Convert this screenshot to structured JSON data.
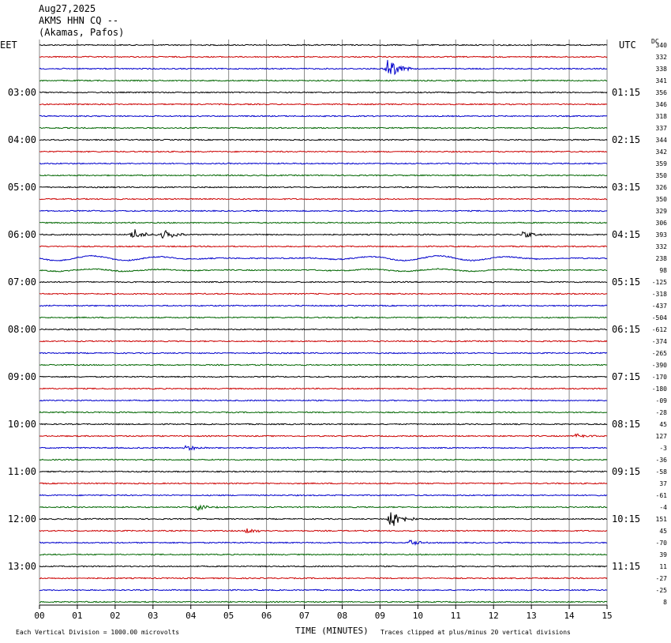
{
  "header": {
    "date": "Aug27,2025",
    "station": "AKMS HHN CQ --",
    "location": "(Akamas, Pafos)"
  },
  "left_timezone": "EET",
  "right_timezone": "UTC",
  "dc_label": "DC",
  "xlabel": "TIME (MINUTES)",
  "footer_left": "Each Vertical Division = 1000.00 microvolts",
  "footer_right": "Traces clipped at plus/minus 20 vertical divisions",
  "colors": {
    "trace_cycle": [
      "#000000",
      "#cc0000",
      "#0000cc",
      "#006600"
    ],
    "grid": "#888888"
  },
  "chart_data": {
    "type": "line",
    "subtype": "helicorder",
    "traces_count": 48,
    "minutes_per_trace": 15,
    "xlim": [
      0,
      15
    ],
    "x_ticks": [
      "00",
      "01",
      "02",
      "03",
      "04",
      "05",
      "06",
      "07",
      "08",
      "09",
      "10",
      "11",
      "12",
      "13",
      "14",
      "15"
    ],
    "left_hour_labels": [
      "03:00",
      "04:00",
      "05:00",
      "06:00",
      "07:00",
      "08:00",
      "09:00",
      "10:00",
      "11:00",
      "12:00",
      "13:00"
    ],
    "right_hour_labels": [
      "01:15",
      "02:15",
      "03:15",
      "04:15",
      "05:15",
      "06:15",
      "07:15",
      "08:15",
      "09:15",
      "10:15",
      "11:15"
    ],
    "hour_label_first_trace": 4,
    "dc_offsets": [
      "340",
      "332",
      "338",
      "341",
      "356",
      "346",
      "318",
      "337",
      "344",
      "342",
      "359",
      "350",
      "326",
      "350",
      "329",
      "306",
      "393",
      "332",
      "238",
      "98",
      "-125",
      "-318",
      "-437",
      "-504",
      "-612",
      "-374",
      "-265",
      "-390",
      "-170",
      "-180",
      "-09",
      "-28",
      "45",
      "127",
      "-3",
      "-36",
      "-58",
      "37",
      "-61",
      "-4",
      "151",
      "45",
      "-70",
      "39",
      "11",
      "-27",
      "-25",
      "8"
    ],
    "events": [
      {
        "trace": 2,
        "minute": 9.2,
        "amplitude": "large"
      },
      {
        "trace": 16,
        "minute": 2.5,
        "amplitude": "medium"
      },
      {
        "trace": 16,
        "minute": 3.3,
        "amplitude": "medium"
      },
      {
        "trace": 16,
        "minute": 12.8,
        "amplitude": "small"
      },
      {
        "trace": 33,
        "minute": 14.2,
        "amplitude": "small"
      },
      {
        "trace": 34,
        "minute": 3.9,
        "amplitude": "small"
      },
      {
        "trace": 39,
        "minute": 4.2,
        "amplitude": "small"
      },
      {
        "trace": 40,
        "minute": 9.3,
        "amplitude": "large"
      },
      {
        "trace": 41,
        "minute": 5.5,
        "amplitude": "small"
      },
      {
        "trace": 42,
        "minute": 9.8,
        "amplitude": "small"
      }
    ]
  }
}
